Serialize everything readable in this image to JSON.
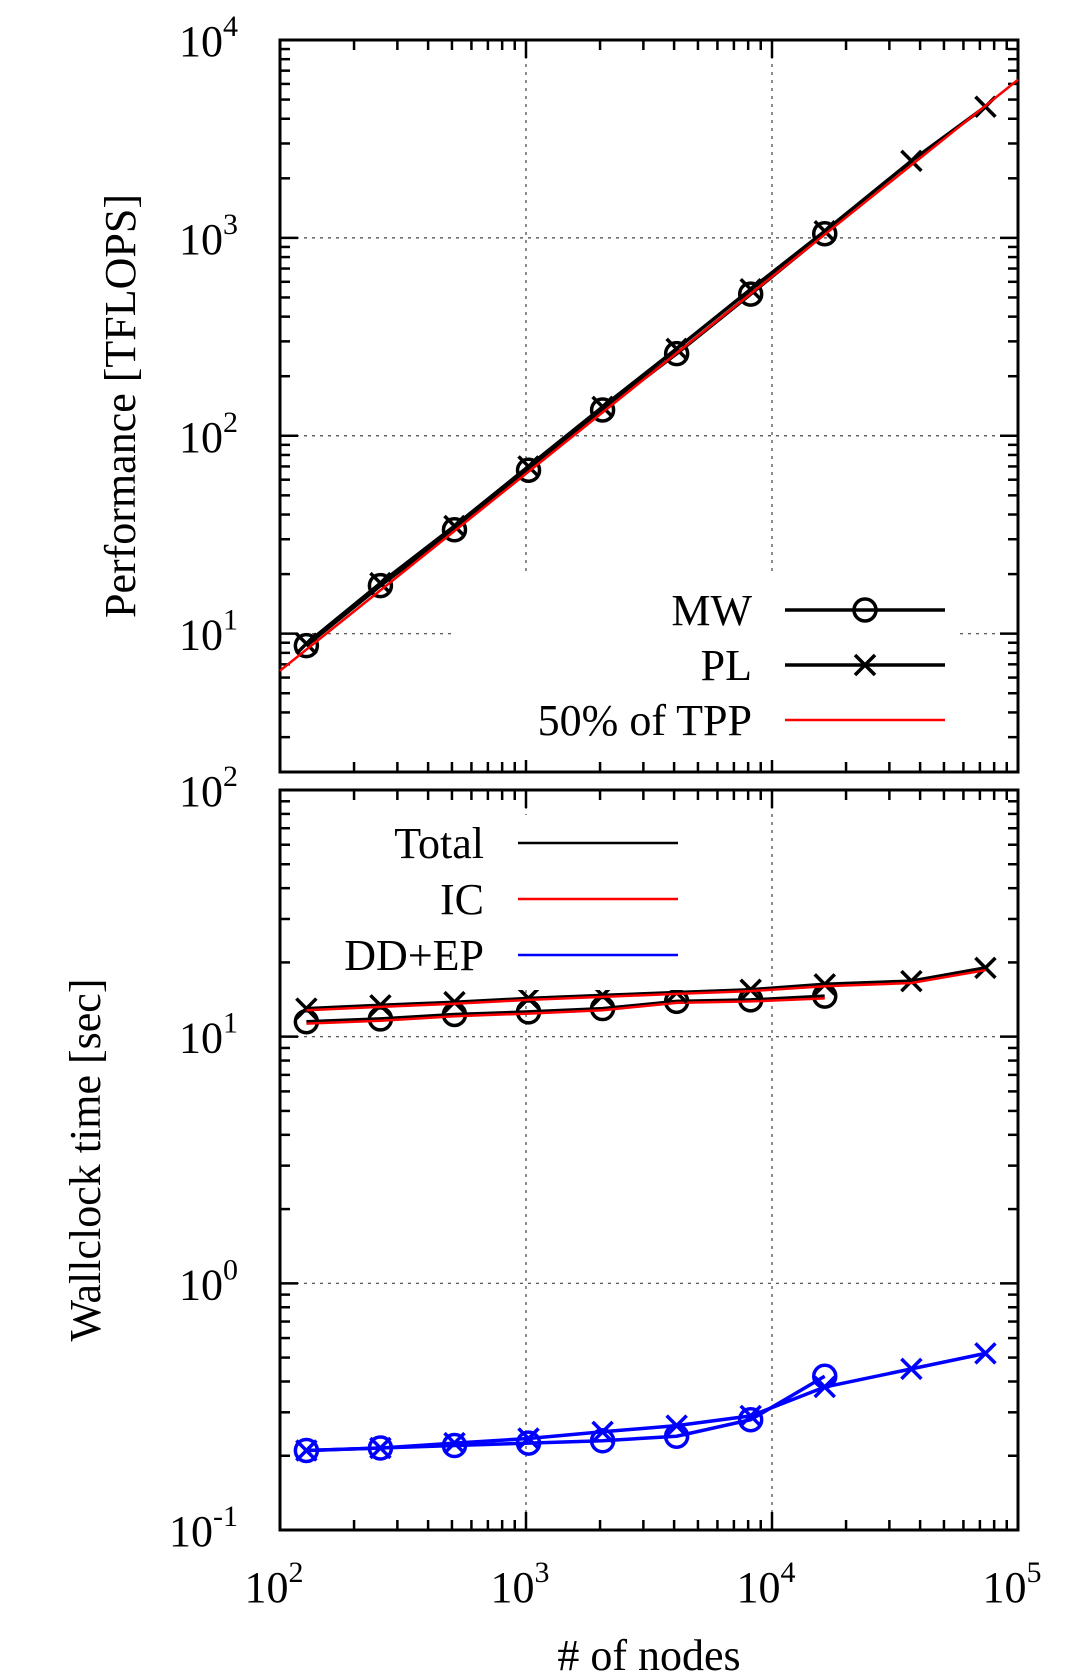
{
  "chart_data": [
    {
      "type": "line",
      "panel": "top",
      "xscale": "log",
      "yscale": "log",
      "xlim": [
        100,
        100000
      ],
      "ylim": [
        2,
        10000
      ],
      "ylabel": "Performance [TFLOPS]",
      "xlabel": "",
      "grid": true,
      "legend_position": "bottom-right",
      "y_ticks": [
        {
          "base": "10",
          "exp": "1",
          "value": 10
        },
        {
          "base": "10",
          "exp": "2",
          "value": 100
        },
        {
          "base": "10",
          "exp": "3",
          "value": 1000
        },
        {
          "base": "10",
          "exp": "4",
          "value": 10000
        }
      ],
      "series": [
        {
          "name": "MW",
          "color": "#000000",
          "marker": "circle",
          "x": [
            128,
            256,
            512,
            1024,
            2048,
            4096,
            8192,
            16384
          ],
          "y": [
            8.7,
            17.5,
            33.5,
            67,
            135,
            260,
            520,
            1050
          ]
        },
        {
          "name": "PL",
          "color": "#000000",
          "marker": "cross",
          "x": [
            128,
            256,
            512,
            1024,
            2048,
            4096,
            8192,
            16384,
            36864,
            73728
          ],
          "y": [
            8.9,
            18,
            35,
            70,
            140,
            275,
            550,
            1080,
            2450,
            4600
          ]
        },
        {
          "name": "50% of TPP",
          "color": "#ff0000",
          "marker": "none",
          "x": [
            100,
            100000
          ],
          "y": [
            6.5,
            6300
          ]
        }
      ]
    },
    {
      "type": "line",
      "panel": "bottom",
      "xscale": "log",
      "yscale": "log",
      "xlim": [
        100,
        100000
      ],
      "ylim": [
        0.1,
        100
      ],
      "xlabel": "# of nodes",
      "ylabel": "Wallclock time [sec]",
      "grid": true,
      "legend_position": "top-left",
      "x_ticks": [
        {
          "base": "10",
          "exp": "2",
          "value": 100
        },
        {
          "base": "10",
          "exp": "3",
          "value": 1000
        },
        {
          "base": "10",
          "exp": "4",
          "value": 10000
        },
        {
          "base": "10",
          "exp": "5",
          "value": 100000
        }
      ],
      "y_ticks": [
        {
          "base": "10",
          "exp": "-1",
          "value": 0.1
        },
        {
          "base": "10",
          "exp": "0",
          "value": 1
        },
        {
          "base": "10",
          "exp": "1",
          "value": 10
        },
        {
          "base": "10",
          "exp": "2",
          "value": 100
        }
      ],
      "legend": [
        {
          "name": "Total",
          "color": "#000000"
        },
        {
          "name": "IC",
          "color": "#ff0000"
        },
        {
          "name": "DD+EP",
          "color": "#0000ff"
        }
      ],
      "series": [
        {
          "name": "Total",
          "run": "MW",
          "color": "#000000",
          "marker": "circle",
          "x": [
            128,
            256,
            512,
            1024,
            2048,
            4096,
            8192,
            16384
          ],
          "y": [
            11.5,
            11.8,
            12.3,
            12.6,
            13.0,
            13.9,
            14.1,
            14.6
          ]
        },
        {
          "name": "IC",
          "run": "MW",
          "color": "#ff0000",
          "marker": "none",
          "x": [
            128,
            256,
            512,
            1024,
            2048,
            4096,
            8192,
            16384
          ],
          "y": [
            11.3,
            11.6,
            12.1,
            12.4,
            12.8,
            13.7,
            13.9,
            14.3
          ]
        },
        {
          "name": "Total",
          "run": "PL",
          "color": "#000000",
          "marker": "cross",
          "x": [
            128,
            256,
            512,
            1024,
            2048,
            4096,
            8192,
            16384,
            36864,
            73728
          ],
          "y": [
            13.0,
            13.4,
            13.8,
            14.3,
            14.7,
            15.1,
            15.5,
            16.3,
            16.8,
            19.0
          ]
        },
        {
          "name": "IC",
          "run": "PL",
          "color": "#ff0000",
          "marker": "none",
          "x": [
            128,
            256,
            512,
            1024,
            2048,
            4096,
            8192,
            16384,
            36864,
            73728
          ],
          "y": [
            12.8,
            13.2,
            13.6,
            14.1,
            14.5,
            14.9,
            15.3,
            16.0,
            16.5,
            18.6
          ]
        },
        {
          "name": "DD+EP",
          "run": "MW",
          "color": "#0000ff",
          "marker": "circle",
          "x": [
            128,
            256,
            512,
            1024,
            2048,
            4096,
            8192,
            16384
          ],
          "y": [
            0.21,
            0.215,
            0.22,
            0.225,
            0.23,
            0.24,
            0.28,
            0.42
          ]
        },
        {
          "name": "DD+EP",
          "run": "PL",
          "color": "#0000ff",
          "marker": "cross",
          "x": [
            128,
            256,
            512,
            1024,
            2048,
            4096,
            8192,
            16384,
            36864,
            73728
          ],
          "y": [
            0.21,
            0.215,
            0.225,
            0.235,
            0.25,
            0.265,
            0.29,
            0.38,
            0.45,
            0.52
          ]
        }
      ]
    }
  ]
}
